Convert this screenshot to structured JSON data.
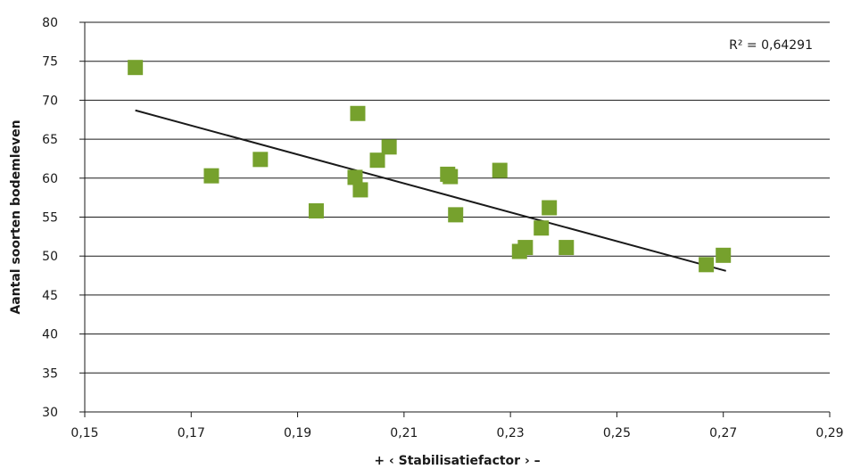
{
  "chart_data": {
    "type": "scatter",
    "title": "",
    "xlabel": "+ ‹ Stabilisatiefactor › –",
    "ylabel": "Aantal soorten bodemleven",
    "xlim": [
      0.15,
      0.29
    ],
    "ylim": [
      30,
      80
    ],
    "x_ticks": [
      0.15,
      0.17,
      0.19,
      0.21,
      0.23,
      0.25,
      0.27,
      0.29
    ],
    "x_tick_labels": [
      "0,15",
      "0,17",
      "0,19",
      "0,21",
      "0,23",
      "0,25",
      "0,27",
      "0,29"
    ],
    "y_ticks": [
      30,
      35,
      40,
      45,
      50,
      55,
      60,
      65,
      70,
      75,
      80
    ],
    "y_tick_labels": [
      "30",
      "35",
      "40",
      "45",
      "50",
      "55",
      "60",
      "65",
      "70",
      "75",
      "80"
    ],
    "grid": "horizontal",
    "points": [
      {
        "x": 0.1595,
        "y": 74.2
      },
      {
        "x": 0.1738,
        "y": 60.3
      },
      {
        "x": 0.183,
        "y": 62.4
      },
      {
        "x": 0.1935,
        "y": 55.8
      },
      {
        "x": 0.2008,
        "y": 60.1
      },
      {
        "x": 0.2013,
        "y": 68.3
      },
      {
        "x": 0.2018,
        "y": 58.5
      },
      {
        "x": 0.205,
        "y": 62.3
      },
      {
        "x": 0.2072,
        "y": 64.0
      },
      {
        "x": 0.2182,
        "y": 60.5
      },
      {
        "x": 0.2187,
        "y": 60.2
      },
      {
        "x": 0.2197,
        "y": 55.3
      },
      {
        "x": 0.228,
        "y": 61.0
      },
      {
        "x": 0.2317,
        "y": 50.6
      },
      {
        "x": 0.2328,
        "y": 51.1
      },
      {
        "x": 0.2358,
        "y": 53.6
      },
      {
        "x": 0.2373,
        "y": 56.2
      },
      {
        "x": 0.2405,
        "y": 51.1
      },
      {
        "x": 0.2668,
        "y": 48.9
      },
      {
        "x": 0.27,
        "y": 50.1
      }
    ],
    "trendline": {
      "x": [
        0.1595,
        0.2705
      ],
      "y": [
        68.7,
        48.1
      ]
    },
    "r_squared_label": "R² = 0,64291",
    "colors": {
      "marker": "#76a12d",
      "trendline": "#1a1a1a",
      "grid": "#1a1a1a"
    }
  }
}
